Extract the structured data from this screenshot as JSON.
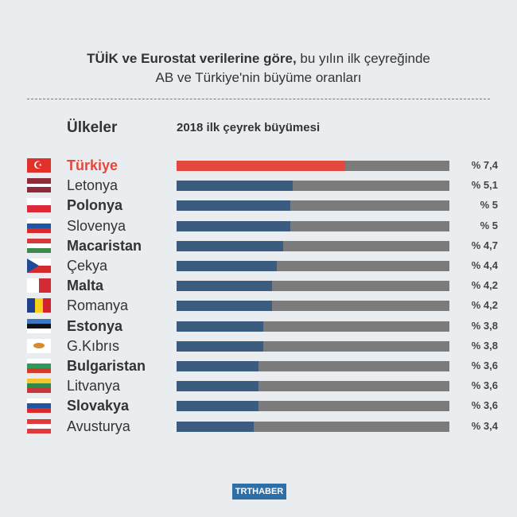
{
  "title": {
    "bold": "TÜİK ve Eurostat verilerine göre,",
    "rest": " bu yılın ilk çeyreğinde",
    "line2": "AB ve Türkiye'nin büyüme oranları"
  },
  "chart_data": {
    "type": "bar",
    "orientation": "horizontal",
    "category_header": "Ülkeler",
    "value_header": "2018 ilk çeyrek büyümesi",
    "highlight_color": "#e2483d",
    "bar_color": "#3b5b7f",
    "track_color": "#7b7b7b",
    "categories": [
      "Türkiye",
      "Letonya",
      "Polonya",
      "Slovenya",
      "Macaristan",
      "Çekya",
      "Malta",
      "Romanya",
      "Estonya",
      "G.Kıbrıs",
      "Bulgaristan",
      "Litvanya",
      "Slovakya",
      "Avusturya"
    ],
    "values": [
      7.4,
      5.1,
      5,
      5,
      4.7,
      4.4,
      4.2,
      4.2,
      3.8,
      3.8,
      3.6,
      3.6,
      3.6,
      3.4
    ],
    "value_labels": [
      "% 7,4",
      "% 5,1",
      "% 5",
      "% 5",
      "% 4,7",
      "% 4,4",
      "% 4,2",
      "% 4,2",
      "% 3,8",
      "% 3,8",
      "% 3,6",
      "% 3,6",
      "% 3,6",
      "% 3,4"
    ],
    "flags": [
      "turkey-flag",
      "latvia-flag",
      "poland-flag",
      "slovenia-flag",
      "hungary-flag",
      "czechia-flag",
      "malta-flag",
      "romania-flag",
      "estonia-flag",
      "cyprus-flag",
      "bulgaria-flag",
      "lithuania-flag",
      "slovakia-flag",
      "austria-flag"
    ],
    "xlim": [
      0,
      12
    ]
  },
  "footer": {
    "logo": "TRTHABER"
  }
}
